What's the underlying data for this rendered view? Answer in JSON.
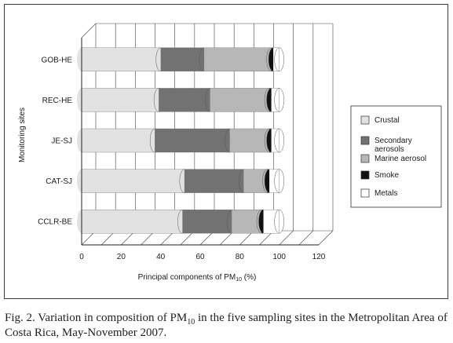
{
  "chart_data": {
    "type": "bar",
    "orientation": "horizontal",
    "stacked": true,
    "ylabel": "Monitoring sites",
    "xlabel_prefix": "Principal components of PM",
    "xlabel_subscript": "10",
    "xlabel_suffix": " (%)",
    "xlim": [
      0,
      120
    ],
    "xticks": [
      "0",
      "20",
      "40",
      "60",
      "80",
      "100",
      "120"
    ],
    "categories": [
      "GOB-HE",
      "REC-HE",
      "JE-SJ",
      "CAT-SJ",
      "CCLR-BE"
    ],
    "series": [
      {
        "name": "Crustal",
        "color": "#e2e2e2",
        "values": [
          40,
          39,
          37,
          52,
          51
        ]
      },
      {
        "name": "Secondary aerosols",
        "color": "#727272",
        "values": [
          22,
          26,
          38,
          30,
          25
        ]
      },
      {
        "name": "Marine aerosol",
        "color": "#b7b7b7",
        "values": [
          34,
          30,
          20,
          12,
          15
        ]
      },
      {
        "name": "Smoke",
        "color": "#111111",
        "values": [
          1,
          1,
          1,
          1,
          1
        ]
      },
      {
        "name": "Metals",
        "color": "#ffffff",
        "values": [
          3,
          4,
          4,
          5,
          8
        ]
      }
    ],
    "legend_position": "right",
    "grid": true
  },
  "legend": {
    "items": [
      "Crustal",
      "Secondary\naerosols",
      "Marine aerosol",
      "Smoke",
      "Metals"
    ]
  },
  "caption": {
    "prefix": "Fig. 2. Variation in composition of PM",
    "subscript": "10",
    "suffix": " in the five sampling sites in the Metropolitan Area of Costa Rica, May-November 2007."
  }
}
